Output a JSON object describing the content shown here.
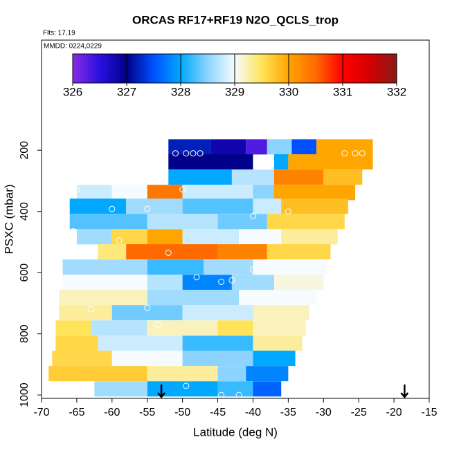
{
  "chart_data": {
    "type": "curtain",
    "title": "ORCAS RF17+RF19 N2O_QCLS_trop",
    "subtitle": "Flts: 17,19",
    "annotation": "MMDD: 0224,0229",
    "x_label": "Latitude (deg N)",
    "y_label": "PSXC (mbar)",
    "xlim": [
      -70,
      -15
    ],
    "xticks": [
      -70,
      -65,
      -60,
      -55,
      -50,
      -45,
      -40,
      -35,
      -30,
      -25,
      -20,
      -15
    ],
    "ylim": [
      1011,
      -160
    ],
    "yticks": [
      200,
      400,
      600,
      800,
      1000
    ],
    "colorbar": {
      "lim": [
        326,
        332
      ],
      "ticks": [
        326,
        327,
        328,
        329,
        330,
        331,
        332
      ],
      "stops": [
        326,
        326.5,
        327,
        327.5,
        328,
        328.5,
        329,
        329.5,
        330,
        330.5,
        331,
        331.5,
        332
      ],
      "colors": [
        "#8a2be2",
        "#2a10e0",
        "#00008b",
        "#0050ff",
        "#00a8ff",
        "#8cd4ff",
        "#f5fbff",
        "#ffe45a",
        "#ffa500",
        "#ff6a00",
        "#ff0000",
        "#d40000",
        "#8b1a1a"
      ]
    },
    "strips": [
      {
        "p": 189,
        "edges": [
          -52,
          -46,
          -41,
          -38,
          -34.5,
          -31,
          -23
        ],
        "values": [
          327.2,
          326.8,
          326.3,
          328.5,
          327.5,
          330
        ]
      },
      {
        "p": 238,
        "edges": [
          -52,
          -40,
          -37,
          -35,
          -23
        ],
        "values": [
          327,
          null,
          328,
          330
        ]
      },
      {
        "p": 288,
        "edges": [
          -52,
          -43,
          -37,
          -30,
          -24.5
        ],
        "values": [
          328,
          328.7,
          330.3,
          329.8
        ]
      },
      {
        "p": 338,
        "edges": [
          -65,
          -60,
          -55,
          -50,
          -40,
          -37,
          -25.5
        ],
        "values": [
          328.8,
          329,
          330.4,
          328.8,
          328.5,
          330
        ]
      },
      {
        "p": 383,
        "edges": [
          -66,
          -58,
          -50,
          -40,
          -36,
          -26.5
        ],
        "values": [
          328,
          328.6,
          328.3,
          328.8,
          329.8
        ]
      },
      {
        "p": 433,
        "edges": [
          -66,
          -55,
          -45,
          -38,
          -27
        ],
        "values": [
          328.3,
          328.7,
          328.4,
          329.6
        ]
      },
      {
        "p": 483,
        "edges": [
          -65,
          -60,
          -55,
          -50,
          -42,
          -36,
          -28
        ],
        "values": [
          328.6,
          329.6,
          330,
          328.8,
          329,
          329.3
        ]
      },
      {
        "p": 532,
        "edges": [
          -62,
          -58,
          -45,
          -38,
          -29
        ],
        "values": [
          329.4,
          330.5,
          330.3,
          329.6
        ]
      },
      {
        "p": 582,
        "edges": [
          -67,
          -55,
          -47,
          -40,
          -29.5
        ],
        "values": [
          328.6,
          328.2,
          328.6,
          329
        ]
      },
      {
        "p": 632,
        "edges": [
          -67,
          -55,
          -50,
          -43,
          -37,
          -30
        ],
        "values": [
          329,
          328.7,
          327.8,
          328.6,
          329.1
        ]
      },
      {
        "p": 681,
        "edges": [
          -67.5,
          -55,
          -42,
          -31
        ],
        "values": [
          329.2,
          328.6,
          329
        ]
      },
      {
        "p": 731,
        "edges": [
          -67.5,
          -60,
          -50,
          -40,
          -32
        ],
        "values": [
          329.3,
          328.4,
          328.8,
          329.2
        ]
      },
      {
        "p": 781,
        "edges": [
          -68,
          -63,
          -55,
          -45,
          -40,
          -32.5
        ],
        "values": [
          329.5,
          328.7,
          329.2,
          329.5,
          329.2
        ]
      },
      {
        "p": 831,
        "edges": [
          -68,
          -62,
          -50,
          -40,
          -33
        ],
        "values": [
          329.6,
          328.8,
          328.2,
          329.3
        ]
      },
      {
        "p": 880,
        "edges": [
          -68.5,
          -60,
          -50,
          -40,
          -34
        ],
        "values": [
          329.6,
          329,
          328.5,
          328
        ]
      },
      {
        "p": 930,
        "edges": [
          -69,
          -55,
          -45,
          -41,
          -35
        ],
        "values": [
          329.7,
          329.3,
          328.5,
          327.8
        ]
      },
      {
        "p": 980,
        "edges": [
          -62.5,
          -55,
          -45,
          -40,
          -36
        ],
        "values": [
          328.6,
          328,
          328.2,
          327.6
        ]
      }
    ],
    "points": {
      "x": [
        -51,
        -49.5,
        -48.5,
        -47.5,
        -27,
        -25.5,
        -24.5,
        -65,
        -50,
        -35,
        -60,
        -55,
        -40,
        -65.5,
        -59,
        -52,
        -40,
        -43,
        -36,
        -60.5,
        -48,
        -44.5,
        -55,
        -63,
        -53.5,
        -49.5,
        -44.5,
        -42
      ],
      "y": [
        210,
        210,
        210,
        210,
        210,
        210,
        210,
        330,
        328,
        400,
        392,
        392,
        415,
        465,
        495,
        535,
        590,
        625,
        590,
        620,
        615,
        630,
        715,
        720,
        770,
        970,
        1000,
        1000
      ]
    },
    "arrows_x": [
      -53,
      -18.5
    ]
  }
}
